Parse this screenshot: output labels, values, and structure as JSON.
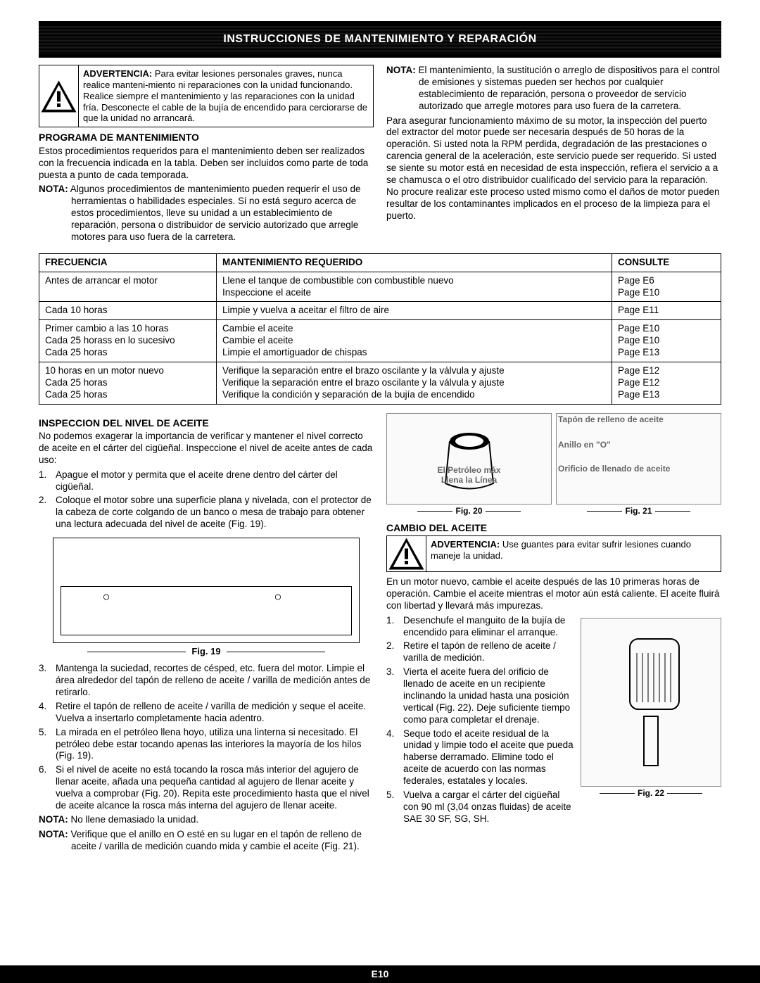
{
  "banner": "INSTRUCCIONES DE MANTENIMIENTO Y REPARACIÓN",
  "warn1": {
    "label": "ADVERTENCIA:",
    "text": " Para evitar lesiones personales graves, nunca realice manteni-miento ni reparaciones con la unidad funcionando. Realice siempre el mantenimiento y las reparaciones con la unidad fría. Desconecte el cable de la bujía de encendido para cerciorarse de que la unidad no arrancará."
  },
  "programa_h": "PROGRAMA DE MANTENIMIENTO",
  "programa_p": "Estos procedimientos requeridos para el mantenimiento deben ser realizados con la frecuencia indicada en la tabla. Deben ser incluidos como parte de toda puesta a punto de cada temporada.",
  "nota1_label": "NOTA:",
  "nota1_text": " Algunos procedimientos de mantenimiento pueden requerir el uso de herramientas o habilidades especiales. Si no está seguro acerca de estos procedimientos, lleve su unidad a un establecimiento de reparación, persona o distribuidor de servicio autorizado que arregle motores para uso fuera de la carretera.",
  "nota2_label": "NOTA:",
  "nota2_text": " El mantenimiento, la sustitución o arreglo de dispositivos para el control de emisiones y sistemas pueden ser hechos por cualquier establecimiento de reparación, persona o proveedor de servicio autorizado que arregle motores para uso fuera de la carretera.",
  "para2": "Para asegurar funcionamiento máximo de su motor, la inspección del puerto del extractor del motor puede ser necesaria después de 50 horas de la operación. Si usted nota la RPM perdida, degradación de las prestaciones o carencia general de la aceleración, este servicio puede ser requerido. Si usted se siente su motor está en necesidad de esta inspección, refiera el servicio a a se chamusca o el otro distribuidor cualificado del servicio para la reparación. No procure realizar este proceso usted mismo como el daños de motor pueden resultar de los contaminantes implicados en el proceso de la limpieza para el puerto.",
  "table": {
    "headers": {
      "f": "FRECUENCIA",
      "m": "MANTENIMIENTO REQUERIDO",
      "c": "CONSULTE"
    },
    "rows": [
      {
        "f": "Antes de arrancar el motor",
        "m": "Llene el tanque de combustible con combustible nuevo\nInspeccione el aceite",
        "c": "Page E6\nPage E10"
      },
      {
        "f": "Cada 10 horas",
        "m": "Limpie y vuelva a aceitar el filtro de aire",
        "c": "Page E11"
      },
      {
        "f": "Primer cambio a las 10 horas\nCada 25 horass en lo sucesivo\nCada 25 horas",
        "m": "Cambie el aceite\nCambie el aceite\nLimpie el amortiguador de chispas",
        "c": "Page E10\nPage E10\nPage E13"
      },
      {
        "f": "10 horas en un motor nuevo\nCada 25 horas\nCada 25 horas",
        "m": "Verifique la separación entre el brazo oscilante y la válvula y ajuste\nVerifique la separación entre el brazo oscilante y la válvula y ajuste\nVerifique la condición y separación de la bujía de encendido",
        "c": "Page E12\nPage E12\nPage E13"
      }
    ]
  },
  "inspeccion_h": "INSPECCION DEL NIVEL DE ACEITE",
  "inspeccion_p": "No podemos exagerar la importancia de verificar y mantener el nivel correcto de aceite en el cárter del cigüeñal. Inspeccione el nivel de aceite antes de cada uso:",
  "list1": [
    "Apague el motor y permita que el aceite drene dentro del cárter del cigüeñal.",
    "Coloque el motor sobre una superficie plana y nivelada, con el protector de la cabeza de corte colgando de un banco o mesa de trabajo para obtener una lectura adecuada del nivel de aceite (Fig. 19)."
  ],
  "fig19": "Fig. 19",
  "list2": [
    "Mantenga la suciedad, recortes de césped, etc. fuera del motor. Limpie el área alrededor del tapón de relleno de aceite / varilla de medición antes de retirarlo.",
    "Retire el tapón de relleno de aceite / varilla de medición y seque el aceite. Vuelva a insertarlo completamente hacia adentro.",
    "La mirada en el petróleo llena hoyo, utiliza una linterna si necesitado. El petróleo debe estar tocando apenas las interiores la mayoría de los hilos (Fig. 19).",
    "Si el nivel de aceite no está tocando la rosca más interior del agujero de llenar aceite, añada una pequeña cantidad al agujero de llenar aceite y vuelva a comprobar (Fig. 20). Repita este procedimiento hasta que el nivel de aceite alcance la rosca más interna del agujero de llenar aceite."
  ],
  "nota3_label": "NOTA:",
  "nota3_text": " No llene demasiado la unidad.",
  "nota4_label": "NOTA:",
  "nota4_text": " Verifique que el anillo en O esté en su lugar en el tapón de relleno de aceite / varilla de medición cuando mida y cambie el aceite (Fig. 21).",
  "fig20_label1": "El Petróleo máx",
  "fig20_label2": "Llena la Línea",
  "fig20": "Fig. 20",
  "fig21_label1": "Tapón de relleno de aceite",
  "fig21_label2": "Anillo en \"O\"",
  "fig21_label3": "Orificio de llenado de aceite",
  "fig21": "Fig. 21",
  "cambio_h": "CAMBIO DEL ACEITE",
  "warn2": {
    "label": "ADVERTENCIA:",
    "text": " Use guantes para evitar sufrir lesiones cuando maneje la unidad."
  },
  "cambio_p": "En un motor nuevo, cambie el aceite después de las 10 primeras horas de operación. Cambie el aceite mientras el motor aún está caliente. El aceite fluirá con libertad y llevará más impurezas.",
  "list3": [
    "Desenchufe el manguito de la bujía de encendido para eliminar el arranque.",
    "Retire el tapón de relleno de aceite / varilla de medición.",
    "Vierta el aceite fuera del orificio de llenado de aceite en un recipiente inclinando la unidad hasta una posición vertical (Fig. 22). Deje suficiente tiempo como para completar el drenaje.",
    "Seque todo el aceite residual de la unidad y limpie todo el aceite que pueda haberse derramado. Elimine todo el aceite de acuerdo con las normas federales, estatales y locales.",
    "Vuelva a cargar el cárter del cigüeñal con 90 ml (3,04 onzas fluidas) de aceite SAE 30 SF, SG, SH."
  ],
  "fig22": "Fig. 22",
  "footer": "E10"
}
